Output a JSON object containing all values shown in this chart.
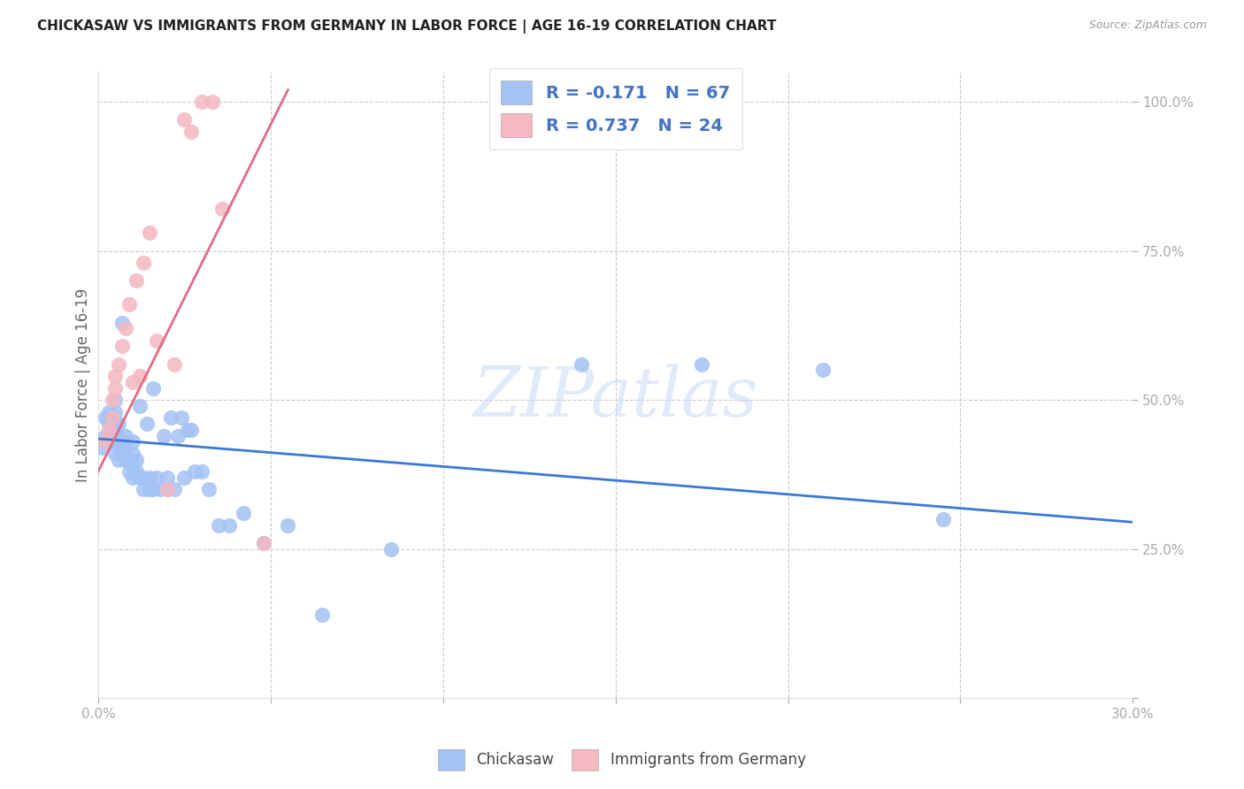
{
  "title": "CHICKASAW VS IMMIGRANTS FROM GERMANY IN LABOR FORCE | AGE 16-19 CORRELATION CHART",
  "source": "Source: ZipAtlas.com",
  "ylabel": "In Labor Force | Age 16-19",
  "xlim": [
    0.0,
    0.3
  ],
  "ylim": [
    0.0,
    1.05
  ],
  "blue_color": "#a4c2f4",
  "pink_color": "#f4b8c1",
  "blue_line_color": "#3c78d8",
  "pink_line_color": "#e06c84",
  "legend_R_blue": "-0.171",
  "legend_N_blue": "67",
  "legend_R_pink": "0.737",
  "legend_N_pink": "24",
  "watermark_text": "ZIPatlas",
  "blue_x": [
    0.001,
    0.002,
    0.002,
    0.003,
    0.003,
    0.003,
    0.004,
    0.004,
    0.004,
    0.005,
    0.005,
    0.005,
    0.005,
    0.005,
    0.006,
    0.006,
    0.006,
    0.006,
    0.007,
    0.007,
    0.007,
    0.008,
    0.008,
    0.008,
    0.009,
    0.009,
    0.01,
    0.01,
    0.01,
    0.01,
    0.011,
    0.011,
    0.012,
    0.012,
    0.013,
    0.013,
    0.014,
    0.015,
    0.015,
    0.016,
    0.016,
    0.017,
    0.018,
    0.019,
    0.02,
    0.02,
    0.021,
    0.022,
    0.023,
    0.024,
    0.025,
    0.026,
    0.027,
    0.028,
    0.03,
    0.032,
    0.035,
    0.038,
    0.042,
    0.048,
    0.055,
    0.065,
    0.085,
    0.14,
    0.175,
    0.21,
    0.245
  ],
  "blue_y": [
    0.42,
    0.44,
    0.47,
    0.44,
    0.46,
    0.48,
    0.43,
    0.45,
    0.47,
    0.41,
    0.44,
    0.46,
    0.48,
    0.5,
    0.4,
    0.42,
    0.44,
    0.46,
    0.41,
    0.43,
    0.63,
    0.4,
    0.42,
    0.44,
    0.38,
    0.4,
    0.37,
    0.39,
    0.41,
    0.43,
    0.38,
    0.4,
    0.37,
    0.49,
    0.35,
    0.37,
    0.46,
    0.35,
    0.37,
    0.52,
    0.35,
    0.37,
    0.35,
    0.44,
    0.35,
    0.37,
    0.47,
    0.35,
    0.44,
    0.47,
    0.37,
    0.45,
    0.45,
    0.38,
    0.38,
    0.35,
    0.29,
    0.29,
    0.31,
    0.26,
    0.29,
    0.14,
    0.25,
    0.56,
    0.56,
    0.55,
    0.3
  ],
  "pink_x": [
    0.002,
    0.003,
    0.004,
    0.004,
    0.005,
    0.005,
    0.006,
    0.007,
    0.008,
    0.009,
    0.01,
    0.011,
    0.012,
    0.013,
    0.015,
    0.017,
    0.02,
    0.022,
    0.025,
    0.027,
    0.03,
    0.033,
    0.036,
    0.048
  ],
  "pink_y": [
    0.43,
    0.45,
    0.47,
    0.5,
    0.52,
    0.54,
    0.56,
    0.59,
    0.62,
    0.66,
    0.53,
    0.7,
    0.54,
    0.73,
    0.78,
    0.6,
    0.35,
    0.56,
    0.97,
    0.95,
    1.0,
    1.0,
    0.82,
    0.26
  ],
  "blue_trend_x": [
    0.0,
    0.3
  ],
  "blue_trend_y": [
    0.435,
    0.295
  ],
  "pink_trend_x": [
    0.0,
    0.055
  ],
  "pink_trend_y": [
    0.38,
    1.02
  ]
}
